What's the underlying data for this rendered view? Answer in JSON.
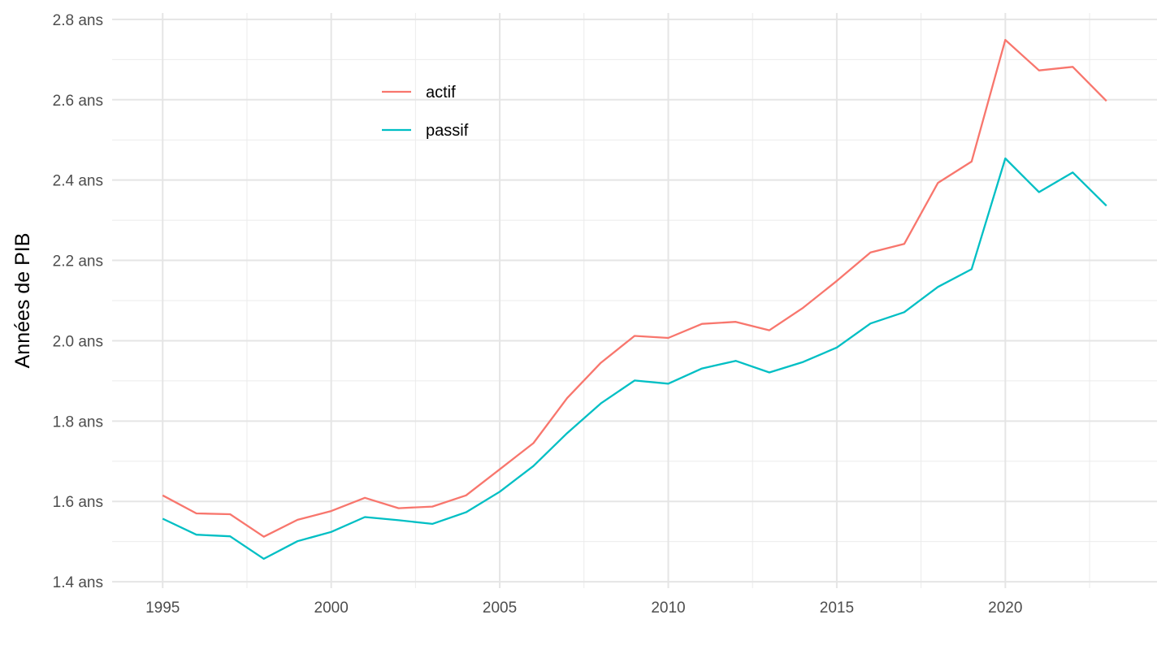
{
  "chart_data": {
    "type": "line",
    "title": "",
    "xlabel": "",
    "ylabel": "Années de PIB",
    "xlim": [
      1993.5,
      2024.5
    ],
    "ylim": [
      1.4,
      2.8
    ],
    "x_ticks": [
      1995,
      2000,
      2005,
      2010,
      2015,
      2020
    ],
    "x_tick_labels": [
      "1995",
      "2000",
      "2005",
      "2010",
      "2015",
      "2020"
    ],
    "y_ticks": [
      1.4,
      1.6,
      1.8,
      2.0,
      2.2,
      2.4,
      2.6,
      2.8
    ],
    "y_tick_labels": [
      "1.4 ans",
      "1.6 ans",
      "1.8 ans",
      "2.0 ans",
      "2.2 ans",
      "2.4 ans",
      "2.6 ans",
      "2.8 ans"
    ],
    "grid": true,
    "legend_position": "top-left-inside",
    "x": [
      1995,
      1996,
      1997,
      1998,
      1999,
      2000,
      2001,
      2002,
      2003,
      2004,
      2005,
      2006,
      2007,
      2008,
      2009,
      2010,
      2011,
      2012,
      2013,
      2014,
      2015,
      2016,
      2017,
      2018,
      2019,
      2020,
      2021,
      2022,
      2023
    ],
    "series": [
      {
        "name": "actif",
        "color": "#F8766D",
        "values": [
          1.615,
          1.57,
          1.568,
          1.512,
          1.554,
          1.576,
          1.609,
          1.583,
          1.587,
          1.615,
          1.68,
          1.745,
          1.857,
          1.945,
          2.012,
          2.007,
          2.042,
          2.047,
          2.026,
          2.082,
          2.149,
          2.22,
          2.241,
          2.393,
          2.446,
          2.749,
          2.673,
          2.682,
          2.597
        ]
      },
      {
        "name": "passif",
        "color": "#00BFC4",
        "values": [
          1.557,
          1.517,
          1.513,
          1.457,
          1.501,
          1.524,
          1.561,
          1.553,
          1.544,
          1.573,
          1.624,
          1.688,
          1.77,
          1.844,
          1.901,
          1.893,
          1.931,
          1.95,
          1.921,
          1.947,
          1.983,
          2.043,
          2.071,
          2.134,
          2.178,
          2.454,
          2.37,
          2.419,
          2.336
        ]
      }
    ]
  }
}
